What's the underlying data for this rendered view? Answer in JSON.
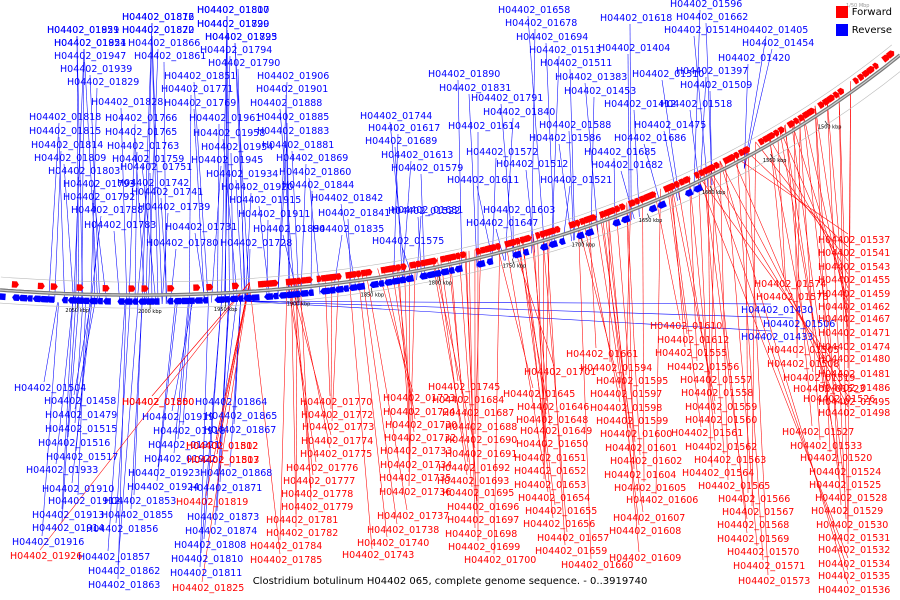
{
  "legend": {
    "forward_label": "Forward",
    "reverse_label": "Reverse",
    "forward_color": "#ff0000",
    "reverse_color": "#0000ff"
  },
  "scale_label": "1/50 Mbp",
  "caption": "Clostridium botulinum H04402 065, complete genome sequence. - 0..3919740",
  "ticks": [
    "2050 kbp",
    "2000 kbp",
    "1950 kbp",
    "1900 kbp",
    "1850 kbp",
    "1800 kbp",
    "1750 kbp",
    "1700 kbp",
    "1650 kbp",
    "1600 kbp",
    "1550 kbp",
    "1500 kbp"
  ],
  "labels": {
    "reverse": [
      "H04402_01872",
      "H04402_01800",
      "H04402_01799",
      "H04402_01959",
      "H04402_01870",
      "H04402_01795",
      "H04402_01951",
      "H04402_01866",
      "H04402_01794",
      "H04402_01947",
      "H04402_01861",
      "H04402_01790",
      "H04402_01939",
      "H04402_01851",
      "H04402_01906",
      "H04402_01829",
      "H04402_01771",
      "H04402_01901",
      "H04402_01828",
      "H04402_01769",
      "H04402_01888",
      "H04402_01818",
      "H04402_01766",
      "H04402_01961",
      "H04402_01885",
      "H04402_01815",
      "H04402_01765",
      "H04402_01958",
      "H04402_01883",
      "H04402_01814",
      "H04402_01763",
      "H04402_01954",
      "H04402_01881",
      "H04402_01809",
      "H04402_01759",
      "H04402_01945",
      "H04402_01869",
      "H04402_01803",
      "H04402_01751",
      "H04402_01934",
      "H04402_01860",
      "H04402_01793",
      "H04402_01742",
      "H04402_01920",
      "H04402_01844",
      "H04402_01792",
      "H04402_01741",
      "H04402_01915",
      "H04402_01842",
      "H04402_01788",
      "H04402_01739",
      "H04402_01911",
      "H04402_01841",
      "H04402_01783",
      "H04402_01731",
      "H04402_01894",
      "H04402_01835",
      "H04402_01780",
      "H04402_01728",
      "H04402_01890",
      "H04402_01831",
      "H04402_01791",
      "H04402_01744",
      "H04402_01840",
      "H04402_01617",
      "H04402_01614",
      "H04402_01588",
      "H04402_01689",
      "H04402_01586",
      "H04402_01686",
      "H04402_01613",
      "H04402_01572",
      "H04402_01685",
      "H04402_01579",
      "H04402_01512",
      "H04402_01682",
      "H04402_01611",
      "H04402_01521",
      "H04402_01681",
      "H04402_01603",
      "H04402_01522",
      "H04402_01647",
      "H04402_01575",
      "H04402_01658",
      "H04402_01596",
      "H04402_01678",
      "H04402_01618",
      "H04402_01662",
      "H04402_01694",
      "H04402_01514",
      "H04402_01405",
      "H04402_01513",
      "H04402_01454",
      "H04402_01404",
      "H04402_01511",
      "H04402_01420",
      "H04402_01383",
      "H04402_01510",
      "H04402_01397",
      "H04402_01453",
      "H04402_01509",
      "H04402_01412",
      "H04402_01518",
      "H04402_01475",
      "H04402_01430",
      "H04402_01506",
      "H04402_01433",
      "H04402_01504",
      "H04402_01458",
      "H04402_01479",
      "H04402_01515",
      "H04402_01516",
      "H04402_01517",
      "H04402_01933",
      "H04402_01910",
      "H04402_01912",
      "H04402_01913",
      "H04402_01914",
      "H04402_01916",
      "H04402_01919",
      "H04402_01918",
      "H04402_01921",
      "H04402_01922",
      "H04402_01923",
      "H04402_01924",
      "H04402_01853",
      "H04402_01855",
      "H04402_01856",
      "H04402_01857",
      "H04402_01862",
      "H04402_01863",
      "H04402_01864",
      "H04402_01865",
      "H04402_01867",
      "H04402_01868",
      "H04402_01871",
      "H04402_01873",
      "H04402_01874",
      "H04402_01808",
      "H04402_01810",
      "H04402_01811",
      "H04402_01816",
      "H04402_01817",
      "H04402_01820",
      "H04402_01821",
      "H04402_01822",
      "H04402_01823",
      "H04402_01824"
    ],
    "forward": [
      "H04402_01850",
      "H04402_01812",
      "H04402_01813",
      "H04402_01819",
      "H04402_01825",
      "H04402_01926",
      "H04402_01770",
      "H04402_01772",
      "H04402_01773",
      "H04402_01774",
      "H04402_01775",
      "H04402_01776",
      "H04402_01777",
      "H04402_01778",
      "H04402_01779",
      "H04402_01781",
      "H04402_01782",
      "H04402_01784",
      "H04402_01785",
      "H04402_01723",
      "H04402_01724",
      "H04402_01730",
      "H04402_01732",
      "H04402_01733",
      "H04402_01734",
      "H04402_01735",
      "H04402_01736",
      "H04402_01737",
      "H04402_01738",
      "H04402_01740",
      "H04402_01743",
      "H04402_01745",
      "H04402_01684",
      "H04402_01687",
      "H04402_01688",
      "H04402_01690",
      "H04402_01691",
      "H04402_01692",
      "H04402_01693",
      "H04402_01695",
      "H04402_01696",
      "H04402_01697",
      "H04402_01698",
      "H04402_01699",
      "H04402_01700",
      "H04402_01701",
      "H04402_01645",
      "H04402_01646",
      "H04402_01648",
      "H04402_01649",
      "H04402_01650",
      "H04402_01651",
      "H04402_01652",
      "H04402_01653",
      "H04402_01654",
      "H04402_01655",
      "H04402_01656",
      "H04402_01657",
      "H04402_01659",
      "H04402_01660",
      "H04402_01661",
      "H04402_01594",
      "H04402_01595",
      "H04402_01597",
      "H04402_01598",
      "H04402_01599",
      "H04402_01600",
      "H04402_01601",
      "H04402_01602",
      "H04402_01604",
      "H04402_01605",
      "H04402_01606",
      "H04402_01607",
      "H04402_01608",
      "H04402_01609",
      "H04402_01610",
      "H04402_01612",
      "H04402_01555",
      "H04402_01556",
      "H04402_01557",
      "H04402_01558",
      "H04402_01559",
      "H04402_01560",
      "H04402_01561",
      "H04402_01562",
      "H04402_01563",
      "H04402_01564",
      "H04402_01565",
      "H04402_01566",
      "H04402_01567",
      "H04402_01568",
      "H04402_01569",
      "H04402_01570",
      "H04402_01571",
      "H04402_01573",
      "H04402_01574",
      "H04402_01576",
      "H04402_01505",
      "H04402_01508",
      "H04402_01519",
      "H04402_01523",
      "H04402_01526",
      "H04402_01527",
      "H04402_01533",
      "H04402_01520",
      "H04402_01524",
      "H04402_01525",
      "H04402_01528",
      "H04402_01529",
      "H04402_01530",
      "H04402_01531",
      "H04402_01532",
      "H04402_01534",
      "H04402_01535",
      "H04402_01536",
      "H04402_01537",
      "H04402_01541",
      "H04402_01543",
      "H04402_01455",
      "H04402_01459",
      "H04402_01462",
      "H04402_01467",
      "H04402_01471",
      "H04402_01474",
      "H04402_01480",
      "H04402_01481",
      "H04402_01486",
      "H04402_01495",
      "H04402_01498",
      "H04402_01500",
      "H04402_01502",
      "H04402_01507"
    ]
  }
}
